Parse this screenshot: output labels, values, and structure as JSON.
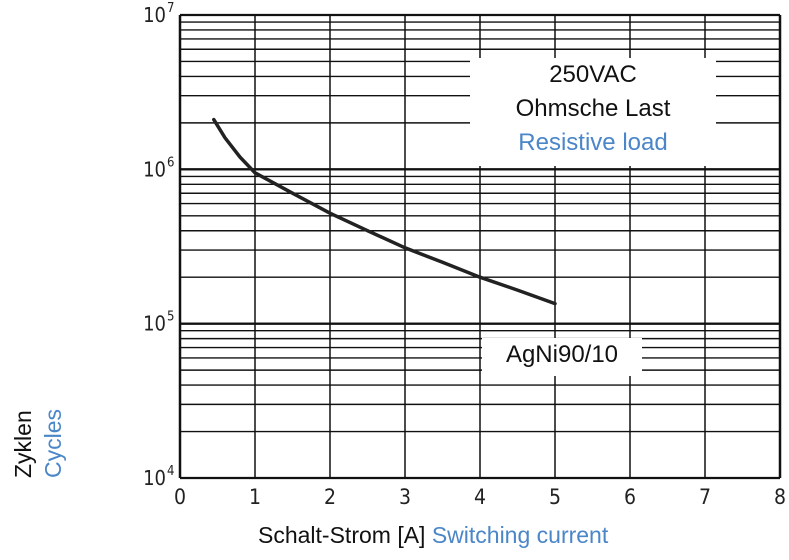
{
  "chart_data": {
    "type": "line",
    "x_axis": {
      "label_de": "Schalt-Strom [A]",
      "label_en": "Switching current",
      "range": [
        0,
        8
      ],
      "ticks": [
        "0",
        "1",
        "2",
        "3",
        "4",
        "5",
        "6",
        "7",
        "8"
      ]
    },
    "y_axis": {
      "label_de": "Zyklen",
      "label_en": "Cycles",
      "scale": "log",
      "range": [
        10000,
        10000000
      ],
      "ticks": [
        {
          "base": "10",
          "exp": "4"
        },
        {
          "base": "10",
          "exp": "5"
        },
        {
          "base": "10",
          "exp": "6"
        },
        {
          "base": "10",
          "exp": "7"
        }
      ]
    },
    "grid": true,
    "annotations": {
      "voltage": "250VAC",
      "load_de": "Ohmsche Last",
      "load_en": "Resistive load",
      "material": "AgNi90/10"
    },
    "series": [
      {
        "x": [
          0.45,
          0.6,
          0.8,
          1.0,
          1.5,
          2.0,
          2.5,
          3.0,
          3.5,
          4.0,
          4.5,
          5.0
        ],
        "y": [
          2100000,
          1600000,
          1200000,
          950000,
          700000,
          520000,
          400000,
          310000,
          250000,
          200000,
          165000,
          135000
        ]
      }
    ]
  }
}
